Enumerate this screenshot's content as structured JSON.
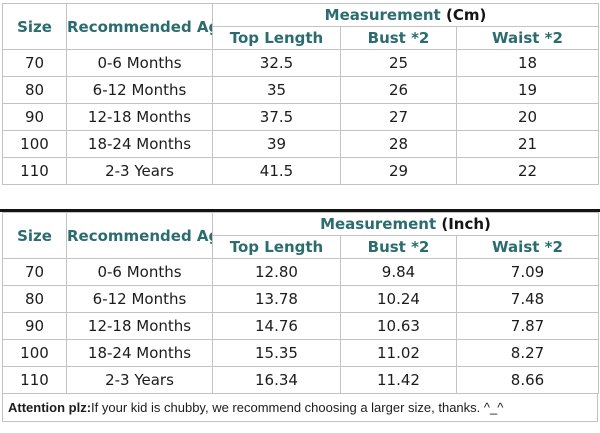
{
  "page": {
    "background_color": "#ffffff",
    "accent_color": "#2b6c6e",
    "border_color": "#c3c3c3",
    "text_color": "#1c1c1c"
  },
  "tables": [
    {
      "id": "cm",
      "measurement_label": "Measurement",
      "unit_label": "(Cm)",
      "headers": {
        "size": "Size",
        "age": "Recommended Age",
        "top_length": "Top Length",
        "bust": "Bust *2",
        "waist": "Waist *2"
      },
      "rows": [
        {
          "size": "70",
          "age": "0-6 Months",
          "top_length": "32.5",
          "bust": "25",
          "waist": "18"
        },
        {
          "size": "80",
          "age": "6-12 Months",
          "top_length": "35",
          "bust": "26",
          "waist": "19"
        },
        {
          "size": "90",
          "age": "12-18 Months",
          "top_length": "37.5",
          "bust": "27",
          "waist": "20"
        },
        {
          "size": "100",
          "age": "18-24 Months",
          "top_length": "39",
          "bust": "28",
          "waist": "21"
        },
        {
          "size": "110",
          "age": "2-3 Years",
          "top_length": "41.5",
          "bust": "29",
          "waist": "22"
        }
      ]
    },
    {
      "id": "inch",
      "measurement_label": "Measurement",
      "unit_label": "(Inch)",
      "headers": {
        "size": "Size",
        "age": "Recommended Age",
        "top_length": "Top Length",
        "bust": "Bust *2",
        "waist": "Waist *2"
      },
      "rows": [
        {
          "size": "70",
          "age": "0-6 Months",
          "top_length": "12.80",
          "bust": "9.84",
          "waist": "7.09"
        },
        {
          "size": "80",
          "age": "6-12 Months",
          "top_length": "13.78",
          "bust": "10.24",
          "waist": "7.48"
        },
        {
          "size": "90",
          "age": "12-18 Months",
          "top_length": "14.76",
          "bust": "10.63",
          "waist": "7.87"
        },
        {
          "size": "100",
          "age": "18-24 Months",
          "top_length": "15.35",
          "bust": "11.02",
          "waist": "8.27"
        },
        {
          "size": "110",
          "age": "2-3 Years",
          "top_length": "16.34",
          "bust": "11.42",
          "waist": "8.66"
        }
      ]
    }
  ],
  "footer": {
    "bold_label": "Attention plz:",
    "note": " If your kid is chubby, we recommend choosing a larger size, thanks. ^_^"
  }
}
